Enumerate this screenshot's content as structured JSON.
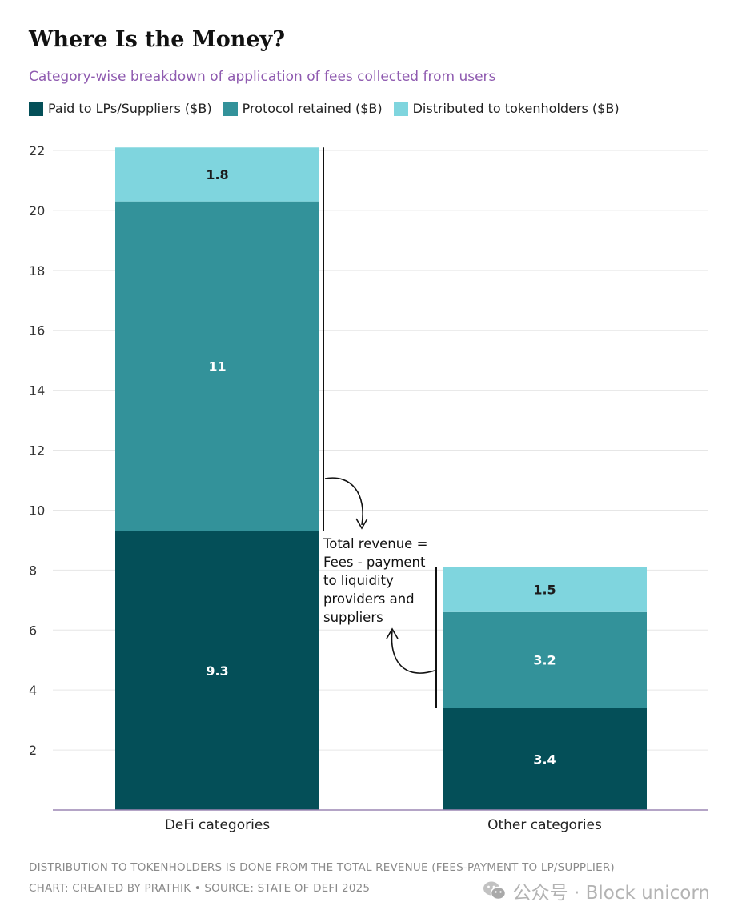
{
  "header": {
    "title": "Where Is the Money?",
    "subtitle": "Category-wise breakdown of application of fees collected from users"
  },
  "colors": {
    "lps": "#044f58",
    "protocol": "#33929a",
    "tokenholders": "#7fd5de",
    "grid": "#e6e6e6",
    "axis": "#9b86b3"
  },
  "chart_data": {
    "type": "bar",
    "stacked": true,
    "title": "Where Is the Money?",
    "subtitle": "Category-wise breakdown of application of fees collected from users",
    "categories": [
      "DeFi categories",
      "Other categories"
    ],
    "series": [
      {
        "name": "Paid to LPs/Suppliers ($B)",
        "values": [
          9.3,
          3.4
        ],
        "labels": [
          "9.3",
          "3.4"
        ]
      },
      {
        "name": "Protocol retained ($B)",
        "values": [
          11,
          3.2
        ],
        "labels": [
          "11",
          "3.2"
        ]
      },
      {
        "name": "Distributed to tokenholders ($B)",
        "values": [
          1.8,
          1.5
        ],
        "labels": [
          "1.8",
          "1.5"
        ]
      }
    ],
    "yticks": [
      "2",
      "4",
      "6",
      "8",
      "10",
      "12",
      "14",
      "16",
      "18",
      "20",
      "22"
    ],
    "ylim": [
      0,
      22
    ],
    "xlabel": "",
    "ylabel": "",
    "grid": true,
    "legend": "top-left",
    "annotation": [
      "Total revenue =",
      "Fees - payment",
      "to liquidity",
      "providers and",
      "suppliers"
    ]
  },
  "footer": {
    "note": "DISTRIBUTION TO TOKENHOLDERS IS DONE FROM THE TOTAL REVENUE (FEES-PAYMENT TO LP/SUPPLIER)",
    "credit": "CHART: CREATED BY PRATHIK • SOURCE: STATE OF DEFI 2025"
  },
  "watermark": {
    "text": "公众号 · Block unicorn",
    "icon": "wechat-icon"
  }
}
